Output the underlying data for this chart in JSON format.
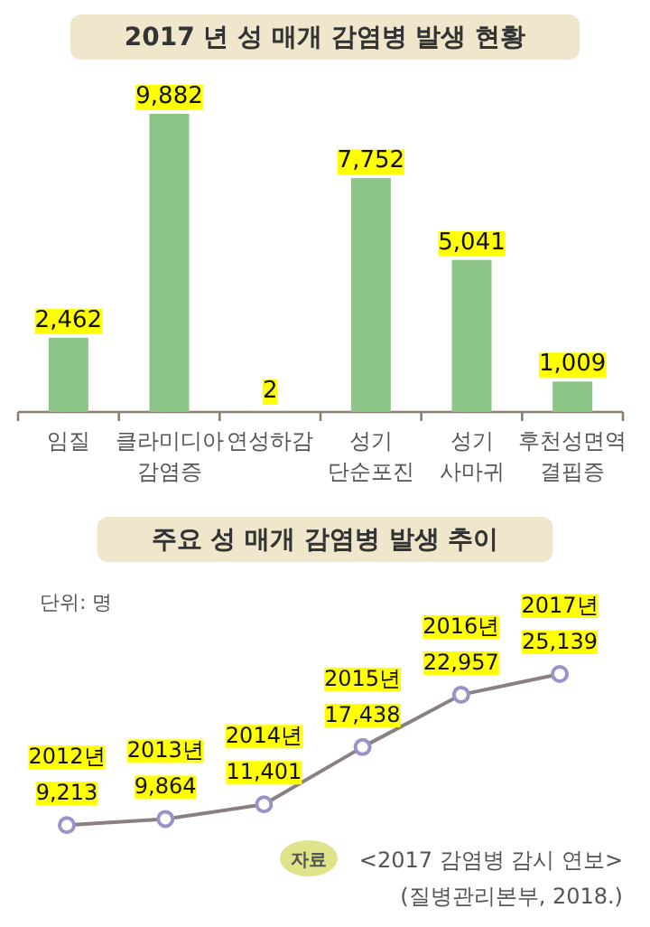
{
  "chart_data": [
    {
      "type": "bar",
      "title": "2017 년 성 매개 감염병 발생 현황",
      "categories": [
        "임질",
        "클라미디아 감염증",
        "연성하감",
        "성기 단순포진",
        "성기 사마귀",
        "후천성면역 결핍증"
      ],
      "values": [
        2462,
        9882,
        2,
        7752,
        5041,
        1009
      ],
      "color": "#8dc487",
      "value_labels": [
        "2,462",
        "9,882",
        "2",
        "7,752",
        "5,041",
        "1,009"
      ]
    },
    {
      "type": "line",
      "title": "주요 성 매개 감염병 발생 추이",
      "subtitle": "단위: 명",
      "categories": [
        null,
        null,
        null,
        null,
        null,
        null
      ],
      "values": [
        9213,
        9864,
        11401,
        17438,
        22957,
        25139
      ],
      "color": "#8a8080",
      "marker": "circle",
      "value_labels": [
        "2012년\n9,213",
        "2013년\n9,864",
        "2014년\n11,401",
        "2015년\n17,438",
        "2016년\n22,957",
        "2017년\n25,139"
      ],
      "annotations": [
        "자료",
        "<2017 감염병 감시 연보>",
        "(질병관리본부, 2018.)"
      ]
    }
  ]
}
